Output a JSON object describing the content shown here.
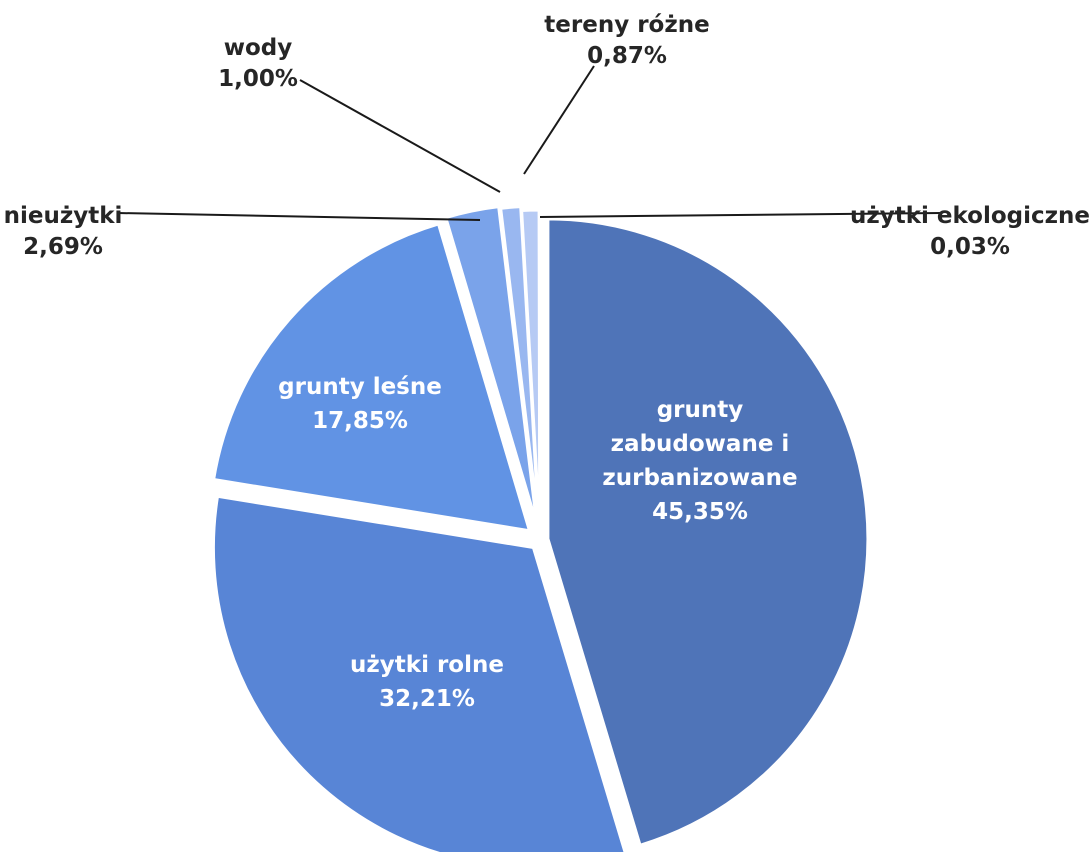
{
  "chart_data": {
    "type": "pie",
    "title": "",
    "slices": [
      {
        "name": "grunty zabudowane i zurbanizowane",
        "value": 45.35,
        "label_lines": [
          "grunty",
          "zabudowane i",
          "zurbanizowane"
        ],
        "value_label": "45,35%",
        "color": "#4f74b8",
        "label_position": "inside"
      },
      {
        "name": "użytki rolne",
        "value": 32.21,
        "label_lines": [
          "użytki rolne"
        ],
        "value_label": "32,21%",
        "color": "#5885d6",
        "label_position": "inside"
      },
      {
        "name": "grunty leśne",
        "value": 17.85,
        "label_lines": [
          "grunty leśne"
        ],
        "value_label": "17,85%",
        "color": "#6193e4",
        "label_position": "inside"
      },
      {
        "name": "nieużytki",
        "value": 2.69,
        "label_lines": [
          "nieużytki"
        ],
        "value_label": "2,69%",
        "color": "#7aa3ea",
        "label_position": "outside"
      },
      {
        "name": "wody",
        "value": 1.0,
        "label_lines": [
          "wody"
        ],
        "value_label": "1,00%",
        "color": "#99b7f0",
        "label_position": "outside"
      },
      {
        "name": "tereny różne",
        "value": 0.87,
        "label_lines": [
          "tereny różne"
        ],
        "value_label": "0,87%",
        "color": "#b6caf4",
        "label_position": "outside"
      },
      {
        "name": "użytki ekologiczne",
        "value": 0.03,
        "label_lines": [
          "użytki ekologiczne"
        ],
        "value_label": "0,03%",
        "color": "#cfdcf8",
        "label_position": "outside"
      }
    ]
  }
}
